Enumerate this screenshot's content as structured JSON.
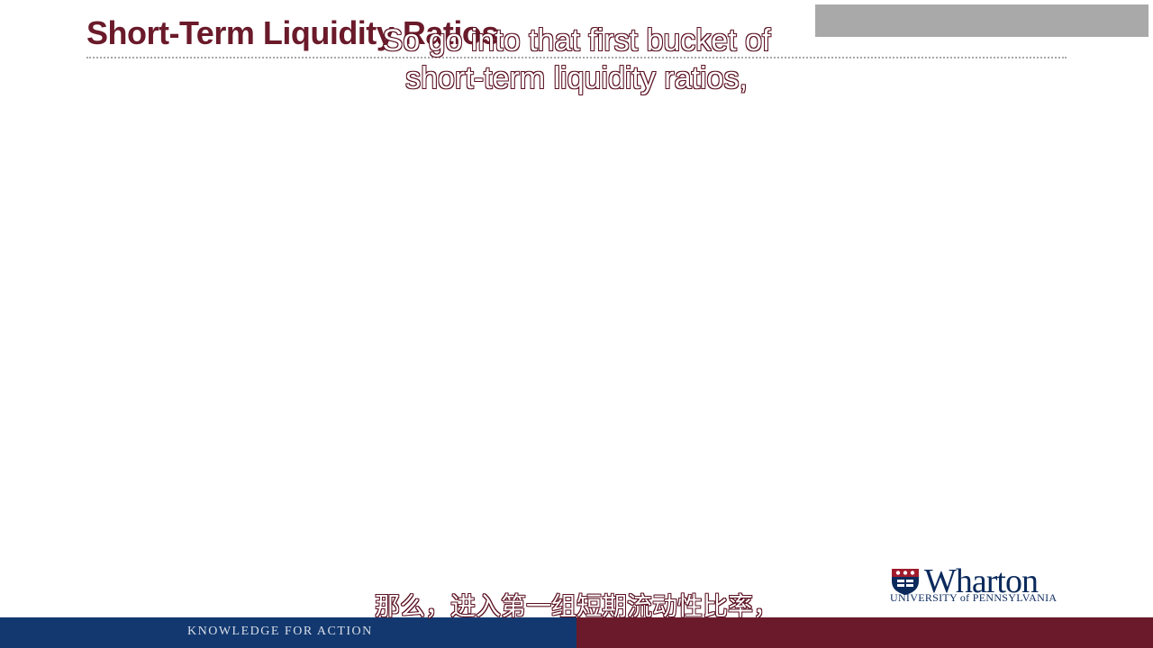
{
  "slide": {
    "title": "Short-Term Liquidity Ratios"
  },
  "captions": {
    "english_line1": "So go into that first bucket of",
    "english_line2": "short-term liquidity ratios,",
    "chinese": "那么，进入第一组短期流动性比率，"
  },
  "logo": {
    "name": "Wharton",
    "subtitle": "UNIVERSITY of PENNSYLVANIA"
  },
  "footer": {
    "tagline": "KNOWLEDGE FOR ACTION"
  },
  "colors": {
    "title": "#6a1a2a",
    "navy": "#12386f",
    "maroon": "#6a1a2a",
    "gray_box": "#a9a9a9"
  }
}
